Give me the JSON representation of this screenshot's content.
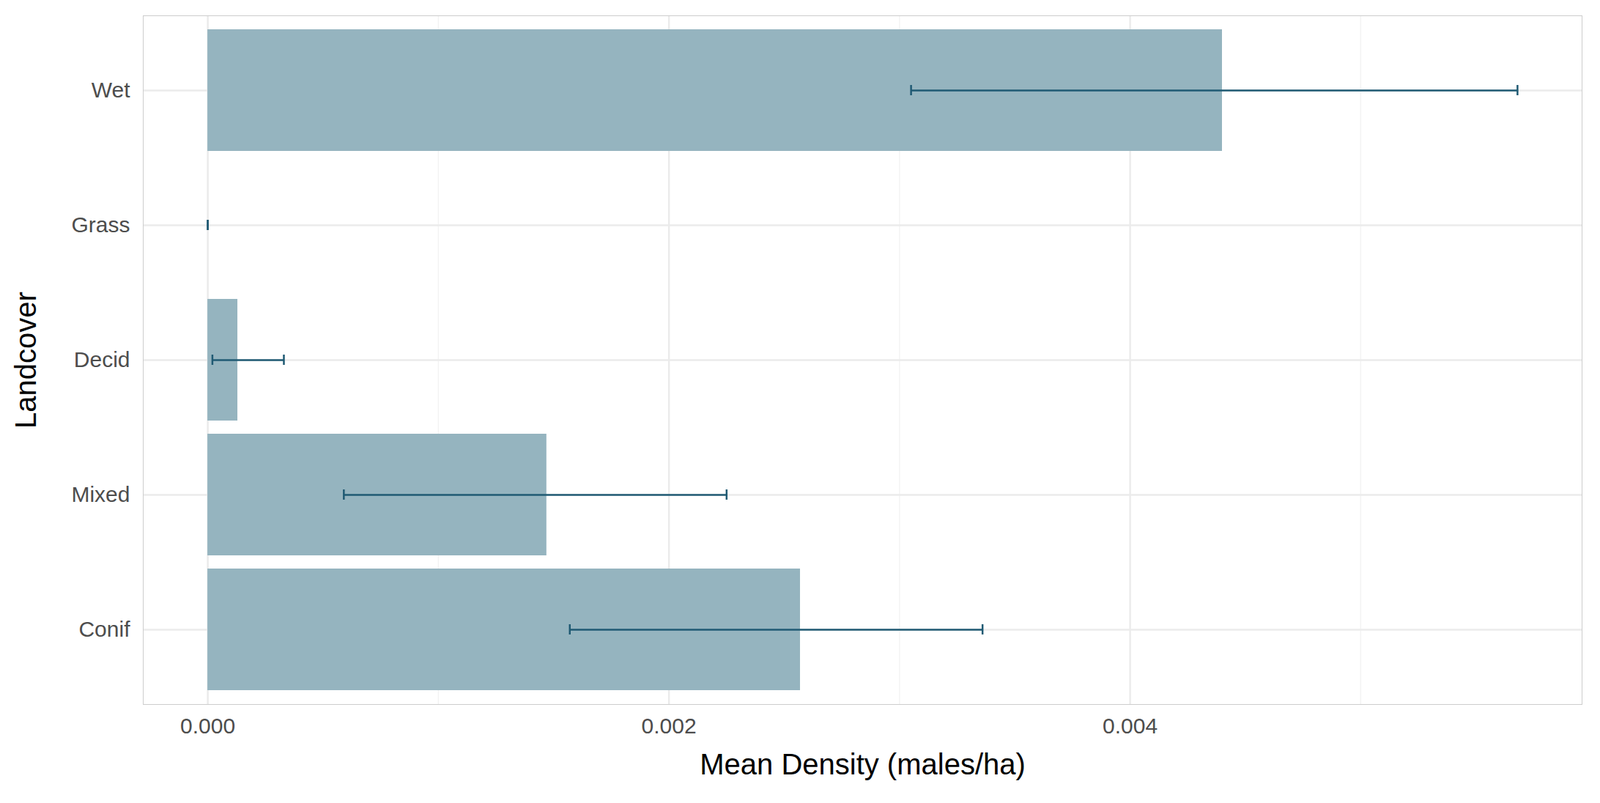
{
  "chart_data": {
    "type": "bar",
    "orientation": "horizontal",
    "x_label": "Mean Density (males/ha)",
    "y_label": "Landcover",
    "categories": [
      "Wet",
      "Grass",
      "Decid",
      "Mixed",
      "Conif"
    ],
    "values": [
      0.0044,
      0,
      0.00013,
      0.00147,
      0.00257
    ],
    "error_low": [
      0.00305,
      0,
      2e-05,
      0.00059,
      0.00157
    ],
    "error_high": [
      0.00568,
      0,
      0.00033,
      0.00225,
      0.00336
    ],
    "color": "#95b4bf",
    "xlim": [
      -0.00028,
      0.00596
    ],
    "xticks": [
      {
        "value": 0,
        "label": "0.000"
      },
      {
        "value": 0.002,
        "label": "0.002"
      },
      {
        "value": 0.004,
        "label": "0.004"
      }
    ],
    "grid": true
  }
}
